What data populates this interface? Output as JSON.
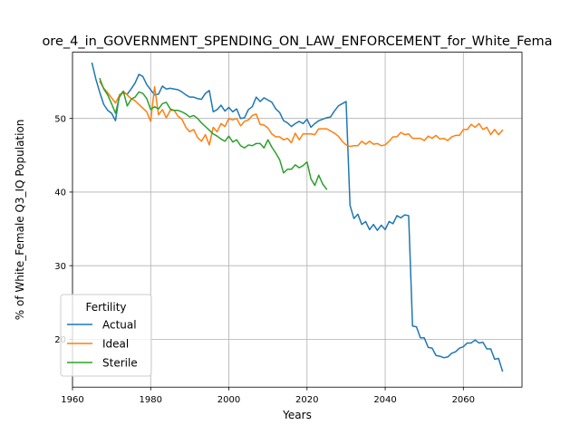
{
  "chart_data": {
    "type": "line",
    "title": "ore_4_in_GOVERNMENT_SPENDING_ON_LAW_ENFORCEMENT_for_White_Fema",
    "xlabel": "Years",
    "ylabel": "% of White_Female Q3_IQ Population",
    "xlim": [
      1960,
      2075
    ],
    "ylim": [
      13.5,
      59.0
    ],
    "xticks": [
      1960,
      1980,
      2000,
      2020,
      2040,
      2060
    ],
    "yticks": [
      20,
      30,
      40,
      50
    ],
    "grid": true,
    "legend": {
      "title": "Fertility",
      "position": "lower-left"
    },
    "series": [
      {
        "name": "Actual",
        "color": "#1f77b4",
        "points": [
          [
            1965,
            57.5
          ],
          [
            1966,
            55.3
          ],
          [
            1967,
            53.5
          ],
          [
            1968,
            51.9
          ],
          [
            1969,
            51.1
          ],
          [
            1970,
            50.7
          ],
          [
            1971,
            49.7
          ],
          [
            1972,
            53.2
          ],
          [
            1973,
            53.5
          ],
          [
            1974,
            53.3
          ],
          [
            1975,
            54.0
          ],
          [
            1976,
            54.8
          ],
          [
            1977,
            56.0
          ],
          [
            1978,
            55.7
          ],
          [
            1979,
            54.6
          ],
          [
            1980,
            53.9
          ],
          [
            1981,
            53.2
          ],
          [
            1982,
            53.3
          ],
          [
            1983,
            54.4
          ],
          [
            1984,
            54.0
          ],
          [
            1985,
            54.1
          ],
          [
            1986,
            54.0
          ],
          [
            1987,
            53.9
          ],
          [
            1988,
            53.6
          ],
          [
            1989,
            53.2
          ],
          [
            1990,
            52.9
          ],
          [
            1991,
            52.9
          ],
          [
            1992,
            52.7
          ],
          [
            1993,
            52.6
          ],
          [
            1994,
            53.4
          ],
          [
            1995,
            53.8
          ],
          [
            1996,
            50.9
          ],
          [
            1997,
            51.2
          ],
          [
            1998,
            51.8
          ],
          [
            1999,
            51.0
          ],
          [
            2000,
            51.5
          ],
          [
            2001,
            50.9
          ],
          [
            2002,
            51.3
          ],
          [
            2003,
            50.0
          ],
          [
            2004,
            50.1
          ],
          [
            2005,
            51.2
          ],
          [
            2006,
            51.6
          ],
          [
            2007,
            52.9
          ],
          [
            2008,
            52.3
          ],
          [
            2009,
            52.8
          ],
          [
            2010,
            52.5
          ],
          [
            2011,
            52.2
          ],
          [
            2012,
            51.3
          ],
          [
            2013,
            50.8
          ],
          [
            2014,
            49.7
          ],
          [
            2015,
            49.4
          ],
          [
            2016,
            48.9
          ],
          [
            2017,
            49.3
          ],
          [
            2018,
            49.6
          ],
          [
            2019,
            49.3
          ],
          [
            2020,
            49.9
          ],
          [
            2021,
            48.8
          ],
          [
            2022,
            49.3
          ],
          [
            2023,
            49.7
          ],
          [
            2024,
            49.9
          ],
          [
            2025,
            50.1
          ],
          [
            2026,
            50.2
          ],
          [
            2027,
            51.0
          ],
          [
            2028,
            51.7
          ],
          [
            2029,
            52.0
          ],
          [
            2030,
            52.3
          ],
          [
            2031,
            38.2
          ],
          [
            2032,
            36.4
          ],
          [
            2033,
            37.0
          ],
          [
            2034,
            35.6
          ],
          [
            2035,
            36.0
          ],
          [
            2036,
            34.9
          ],
          [
            2037,
            35.6
          ],
          [
            2038,
            34.8
          ],
          [
            2039,
            35.5
          ],
          [
            2040,
            34.9
          ],
          [
            2041,
            36.0
          ],
          [
            2042,
            35.7
          ],
          [
            2043,
            36.8
          ],
          [
            2044,
            36.5
          ],
          [
            2045,
            36.9
          ],
          [
            2046,
            36.8
          ],
          [
            2047,
            21.8
          ],
          [
            2048,
            21.7
          ],
          [
            2049,
            20.2
          ],
          [
            2050,
            20.2
          ],
          [
            2051,
            18.9
          ],
          [
            2052,
            18.8
          ],
          [
            2053,
            17.8
          ],
          [
            2054,
            17.7
          ],
          [
            2055,
            17.5
          ],
          [
            2056,
            17.6
          ],
          [
            2057,
            18.1
          ],
          [
            2058,
            18.3
          ],
          [
            2059,
            18.8
          ],
          [
            2060,
            19.0
          ],
          [
            2061,
            19.5
          ],
          [
            2062,
            19.5
          ],
          [
            2063,
            19.9
          ],
          [
            2064,
            19.5
          ],
          [
            2065,
            19.6
          ],
          [
            2066,
            18.7
          ],
          [
            2067,
            18.7
          ],
          [
            2068,
            17.3
          ],
          [
            2069,
            17.4
          ],
          [
            2070,
            15.7
          ]
        ]
      },
      {
        "name": "Ideal",
        "color": "#ff7f0e",
        "points": [
          [
            1967,
            55.0
          ],
          [
            1968,
            54.1
          ],
          [
            1969,
            53.5
          ],
          [
            1970,
            52.8
          ],
          [
            1971,
            52.1
          ],
          [
            1972,
            53.1
          ],
          [
            1973,
            53.7
          ],
          [
            1974,
            53.2
          ],
          [
            1975,
            52.7
          ],
          [
            1976,
            52.4
          ],
          [
            1977,
            51.9
          ],
          [
            1978,
            51.4
          ],
          [
            1979,
            50.9
          ],
          [
            1980,
            49.6
          ],
          [
            1981,
            54.3
          ],
          [
            1982,
            50.5
          ],
          [
            1983,
            51.2
          ],
          [
            1984,
            50.1
          ],
          [
            1985,
            51.1
          ],
          [
            1986,
            51.1
          ],
          [
            1987,
            50.3
          ],
          [
            1988,
            49.9
          ],
          [
            1989,
            48.8
          ],
          [
            1990,
            48.2
          ],
          [
            1991,
            48.5
          ],
          [
            1992,
            47.4
          ],
          [
            1993,
            46.9
          ],
          [
            1994,
            47.8
          ],
          [
            1995,
            46.4
          ],
          [
            1996,
            48.8
          ],
          [
            1997,
            48.2
          ],
          [
            1998,
            49.3
          ],
          [
            1999,
            48.9
          ],
          [
            2000,
            50.0
          ],
          [
            2001,
            49.8
          ],
          [
            2002,
            50.0
          ],
          [
            2003,
            49.0
          ],
          [
            2004,
            49.6
          ],
          [
            2005,
            49.8
          ],
          [
            2006,
            50.4
          ],
          [
            2007,
            50.6
          ],
          [
            2008,
            49.2
          ],
          [
            2009,
            49.1
          ],
          [
            2010,
            48.7
          ],
          [
            2011,
            47.9
          ],
          [
            2012,
            47.5
          ],
          [
            2013,
            47.5
          ],
          [
            2014,
            47.1
          ],
          [
            2015,
            47.3
          ],
          [
            2016,
            46.7
          ],
          [
            2017,
            48.0
          ],
          [
            2018,
            47.1
          ],
          [
            2019,
            47.9
          ],
          [
            2020,
            47.9
          ],
          [
            2021,
            47.9
          ],
          [
            2022,
            47.8
          ],
          [
            2023,
            48.6
          ],
          [
            2024,
            48.6
          ],
          [
            2025,
            48.6
          ],
          [
            2026,
            48.3
          ],
          [
            2027,
            48.0
          ],
          [
            2028,
            47.6
          ],
          [
            2029,
            46.9
          ],
          [
            2030,
            46.4
          ],
          [
            2031,
            46.2
          ],
          [
            2032,
            46.3
          ],
          [
            2033,
            46.3
          ],
          [
            2034,
            46.9
          ],
          [
            2035,
            46.5
          ],
          [
            2036,
            46.9
          ],
          [
            2037,
            46.5
          ],
          [
            2038,
            46.6
          ],
          [
            2039,
            46.3
          ],
          [
            2040,
            46.4
          ],
          [
            2041,
            46.9
          ],
          [
            2042,
            47.5
          ],
          [
            2043,
            47.5
          ],
          [
            2044,
            48.1
          ],
          [
            2045,
            47.8
          ],
          [
            2046,
            47.9
          ],
          [
            2047,
            47.3
          ],
          [
            2048,
            47.3
          ],
          [
            2049,
            47.3
          ],
          [
            2050,
            47.0
          ],
          [
            2051,
            47.6
          ],
          [
            2052,
            47.3
          ],
          [
            2053,
            47.7
          ],
          [
            2054,
            47.2
          ],
          [
            2055,
            47.3
          ],
          [
            2056,
            47.0
          ],
          [
            2057,
            47.5
          ],
          [
            2058,
            47.7
          ],
          [
            2059,
            47.7
          ],
          [
            2060,
            48.5
          ],
          [
            2061,
            48.5
          ],
          [
            2062,
            49.2
          ],
          [
            2063,
            48.8
          ],
          [
            2064,
            49.3
          ],
          [
            2065,
            48.5
          ],
          [
            2066,
            48.8
          ],
          [
            2067,
            47.8
          ],
          [
            2068,
            48.5
          ],
          [
            2069,
            47.8
          ],
          [
            2070,
            48.4
          ]
        ]
      },
      {
        "name": "Sterile",
        "color": "#2ca02c",
        "points": [
          [
            1967,
            55.4
          ],
          [
            1968,
            54.0
          ],
          [
            1969,
            53.2
          ],
          [
            1970,
            52.0
          ],
          [
            1971,
            50.7
          ],
          [
            1972,
            52.9
          ],
          [
            1973,
            53.7
          ],
          [
            1974,
            51.7
          ],
          [
            1975,
            52.6
          ],
          [
            1976,
            52.9
          ],
          [
            1977,
            53.6
          ],
          [
            1978,
            53.4
          ],
          [
            1979,
            52.7
          ],
          [
            1980,
            51.2
          ],
          [
            1981,
            51.6
          ],
          [
            1982,
            51.3
          ],
          [
            1983,
            52.0
          ],
          [
            1984,
            52.2
          ],
          [
            1985,
            51.3
          ],
          [
            1986,
            51.1
          ],
          [
            1987,
            51.1
          ],
          [
            1988,
            50.9
          ],
          [
            1989,
            50.6
          ],
          [
            1990,
            50.2
          ],
          [
            1991,
            50.4
          ],
          [
            1992,
            50.0
          ],
          [
            1993,
            49.4
          ],
          [
            1994,
            48.9
          ],
          [
            1995,
            48.4
          ],
          [
            1996,
            47.9
          ],
          [
            1997,
            47.6
          ],
          [
            1998,
            47.2
          ],
          [
            1999,
            46.9
          ],
          [
            2000,
            47.6
          ],
          [
            2001,
            46.8
          ],
          [
            2002,
            47.1
          ],
          [
            2003,
            46.3
          ],
          [
            2004,
            46.0
          ],
          [
            2005,
            46.4
          ],
          [
            2006,
            46.3
          ],
          [
            2007,
            46.6
          ],
          [
            2008,
            46.6
          ],
          [
            2009,
            46.0
          ],
          [
            2010,
            47.1
          ],
          [
            2011,
            46.1
          ],
          [
            2012,
            45.3
          ],
          [
            2013,
            44.4
          ],
          [
            2014,
            42.6
          ],
          [
            2015,
            43.1
          ],
          [
            2016,
            43.1
          ],
          [
            2017,
            43.7
          ],
          [
            2018,
            43.3
          ],
          [
            2019,
            43.6
          ],
          [
            2020,
            44.1
          ],
          [
            2021,
            41.8
          ],
          [
            2022,
            40.9
          ],
          [
            2023,
            42.3
          ],
          [
            2024,
            41.1
          ],
          [
            2025,
            40.4
          ]
        ]
      }
    ]
  }
}
